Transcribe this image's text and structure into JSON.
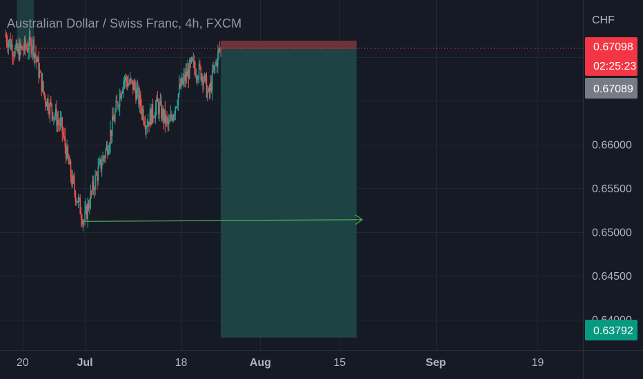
{
  "chart_data": {
    "type": "candlestick",
    "title": "Australian Dollar / Swiss Franc, 4h, FXCM",
    "currency": "CHF",
    "x_ticks": [
      {
        "date": "2022-06-20",
        "label": "20",
        "bold": false
      },
      {
        "date": "2022-07-01",
        "label": "Jul",
        "bold": true
      },
      {
        "date": "2022-07-18",
        "label": "18",
        "bold": false
      },
      {
        "date": "2022-08-01",
        "label": "Aug",
        "bold": true
      },
      {
        "date": "2022-08-15",
        "label": "15",
        "bold": false
      },
      {
        "date": "2022-09-01",
        "label": "Sep",
        "bold": true
      },
      {
        "date": "2022-09-19",
        "label": "19",
        "bold": false
      }
    ],
    "y_ticks": [
      0.64,
      0.645,
      0.65,
      0.655,
      0.66
    ],
    "y_tick_labels": [
      "0.64000",
      "0.64500",
      "0.65000",
      "0.65500",
      "0.66000"
    ],
    "ylim": [
      0.6365,
      0.6765
    ],
    "xlim": [
      "2022-06-16",
      "2022-09-27"
    ],
    "grid": true,
    "ohlc_key_points": [
      {
        "date": "2022-06-17",
        "price": 0.6725
      },
      {
        "date": "2022-06-19",
        "price": 0.6705
      },
      {
        "date": "2022-06-22",
        "price": 0.6715
      },
      {
        "date": "2022-06-24",
        "price": 0.6655
      },
      {
        "date": "2022-06-27",
        "price": 0.662
      },
      {
        "date": "2022-06-29",
        "price": 0.6555
      },
      {
        "date": "2022-07-01",
        "price": 0.6512
      },
      {
        "date": "2022-07-03",
        "price": 0.656
      },
      {
        "date": "2022-07-05",
        "price": 0.6595
      },
      {
        "date": "2022-07-08",
        "price": 0.6675
      },
      {
        "date": "2022-07-10",
        "price": 0.6665
      },
      {
        "date": "2022-07-12",
        "price": 0.6625
      },
      {
        "date": "2022-07-14",
        "price": 0.6645
      },
      {
        "date": "2022-07-16",
        "price": 0.662
      },
      {
        "date": "2022-07-18",
        "price": 0.6665
      },
      {
        "date": "2022-07-20",
        "price": 0.669
      },
      {
        "date": "2022-07-22",
        "price": 0.668
      },
      {
        "date": "2022-07-23",
        "price": 0.6655
      },
      {
        "date": "2022-07-24",
        "price": 0.6685
      },
      {
        "date": "2022-07-25",
        "price": 0.6709
      }
    ],
    "position": {
      "type": "short",
      "start": "2022-07-25",
      "end": "2022-08-18",
      "entry": 0.67089,
      "stop": 0.67185,
      "target": 0.63792
    },
    "arrow": {
      "start_date": "2022-07-01",
      "end_date": "2022-08-19",
      "start_price": 0.6512,
      "end_price": 0.6514
    },
    "badges": {
      "last_price": "0.67098",
      "countdown": "02:25:23",
      "entry_price": "0.67089",
      "target_price": "0.63792"
    },
    "colors": {
      "background": "#161a25",
      "up": "#26a69a",
      "down": "#ef5350",
      "profit_zone": "#1f4b4a",
      "stop_zone": "#7a3a40",
      "arrow": "#4caf50",
      "badge_last": "#f23645",
      "badge_entry": "#787b86",
      "badge_target": "#089981"
    }
  }
}
